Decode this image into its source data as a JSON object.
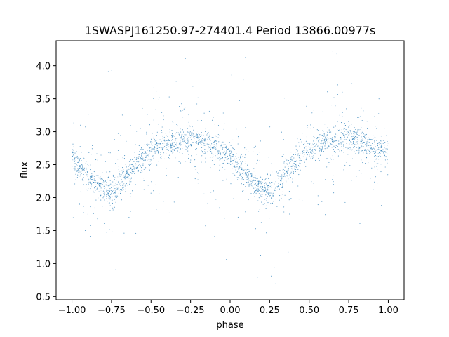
{
  "chart_data": {
    "type": "scatter",
    "title": "1SWASPJ161250.97-274401.4 Period 13866.00977s",
    "xlabel": "phase",
    "ylabel": "flux",
    "xlim": [
      -1.1,
      1.1
    ],
    "ylim": [
      0.45,
      4.38
    ],
    "xticks": [
      -1.0,
      -0.75,
      -0.5,
      -0.25,
      0.0,
      0.25,
      0.5,
      0.75,
      1.0
    ],
    "xtick_labels": [
      "−1.00",
      "−0.75",
      "−0.50",
      "−0.25",
      "0.00",
      "0.25",
      "0.50",
      "0.75",
      "1.00"
    ],
    "yticks": [
      0.5,
      1.0,
      1.5,
      2.0,
      2.5,
      3.0,
      3.5,
      4.0
    ],
    "ytick_labels": [
      "0.5",
      "1.0",
      "1.5",
      "2.0",
      "2.5",
      "3.0",
      "3.5",
      "4.0"
    ],
    "grid": false,
    "point_color": "#1f77b4",
    "series": [
      {
        "x": [
          -1.0,
          -0.95,
          -0.9,
          -0.85,
          -0.8,
          -0.77,
          -0.75,
          -0.7,
          -0.65,
          -0.6,
          -0.55,
          -0.5,
          -0.45,
          -0.4,
          -0.35,
          -0.3,
          -0.25,
          -0.2,
          -0.15,
          -0.1,
          -0.05,
          0.0,
          0.05,
          0.1,
          0.15,
          0.2,
          0.23,
          0.25,
          0.3,
          0.35,
          0.4,
          0.45,
          0.5,
          0.55,
          0.6,
          0.65,
          0.7,
          0.75,
          0.8,
          0.85,
          0.9,
          0.95,
          1.0
        ],
        "y": [
          2.62,
          2.48,
          2.35,
          2.22,
          2.12,
          2.1,
          2.11,
          2.2,
          2.35,
          2.5,
          2.63,
          2.72,
          2.78,
          2.82,
          2.85,
          2.88,
          2.88,
          2.86,
          2.82,
          2.77,
          2.7,
          2.62,
          2.48,
          2.35,
          2.22,
          2.12,
          2.1,
          2.11,
          2.2,
          2.35,
          2.5,
          2.63,
          2.72,
          2.78,
          2.82,
          2.85,
          2.88,
          2.88,
          2.86,
          2.82,
          2.77,
          2.72,
          2.68
        ]
      }
    ]
  }
}
